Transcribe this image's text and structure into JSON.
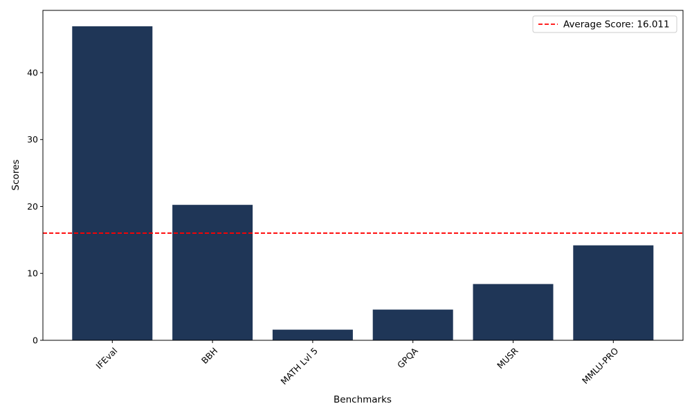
{
  "chart_data": {
    "type": "bar",
    "categories": [
      "IFEval",
      "BBH",
      "MATH Lvl 5",
      "GPQA",
      "MUSR",
      "MMLU-PRO"
    ],
    "values": [
      46.92,
      20.24,
      1.59,
      4.59,
      8.41,
      14.19
    ],
    "xlabel": "Benchmarks",
    "ylabel": "Scores",
    "ylim": [
      0,
      49.3
    ],
    "yticks": [
      0,
      10,
      20,
      30,
      40
    ],
    "bar_color": "#1f3657",
    "average_line": {
      "value": 16.011,
      "label": "Average Score: 16.011",
      "color": "#ff0000",
      "style": "dashed"
    },
    "legend_position": "top-right",
    "grid": false
  }
}
